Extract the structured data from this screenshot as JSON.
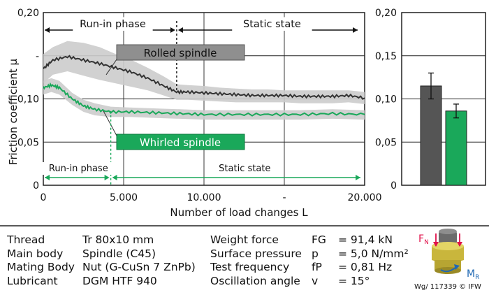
{
  "chart_data": [
    {
      "type": "line",
      "ylabel": "Friction coefficient μ",
      "xlabel": "Number of load changes L",
      "xlim": [
        0,
        20000
      ],
      "ylim": [
        0,
        0.2
      ],
      "x_tick_labels": [
        "0",
        "5.000",
        "10.000",
        "-",
        "20.000"
      ],
      "y_tick_labels": [
        "0",
        "0,05",
        "0,10",
        "-",
        "0,20"
      ],
      "grid": true,
      "annotations": {
        "rolled_label": "Rolled spindle",
        "whirled_label": "Whirled spindle",
        "runin_top": "Run-in phase",
        "static_top": "Static state",
        "runin_bottom": "Run-in phase",
        "static_bottom": "Static state",
        "rolled_transition_x": 8300,
        "whirled_transition_x": 4200
      },
      "series": [
        {
          "name": "Rolled spindle",
          "color": "#333333",
          "band_color": "#cccccc",
          "x": [
            0,
            600,
            1500,
            2500,
            3500,
            4500,
            5500,
            6500,
            7500,
            8300,
            9000,
            10000,
            11000,
            12000,
            13000,
            14000,
            15000,
            16000,
            17000,
            18000,
            19000,
            20000
          ],
          "y": [
            0.135,
            0.145,
            0.149,
            0.145,
            0.141,
            0.136,
            0.131,
            0.124,
            0.115,
            0.108,
            0.108,
            0.107,
            0.106,
            0.105,
            0.104,
            0.104,
            0.104,
            0.103,
            0.103,
            0.103,
            0.104,
            0.101
          ],
          "band_upper": [
            0.152,
            0.16,
            0.167,
            0.165,
            0.16,
            0.152,
            0.145,
            0.136,
            0.126,
            0.117,
            0.116,
            0.115,
            0.113,
            0.112,
            0.111,
            0.111,
            0.11,
            0.11,
            0.11,
            0.11,
            0.11,
            0.108
          ],
          "band_lower": [
            0.118,
            0.128,
            0.132,
            0.127,
            0.122,
            0.118,
            0.114,
            0.11,
            0.104,
            0.099,
            0.099,
            0.098,
            0.097,
            0.096,
            0.096,
            0.096,
            0.096,
            0.095,
            0.095,
            0.095,
            0.096,
            0.094
          ]
        },
        {
          "name": "Whirled spindle",
          "color": "#1aa85a",
          "band_color": "#cccccc",
          "x": [
            0,
            500,
            1000,
            1800,
            2500,
            3200,
            4200,
            5500,
            7000,
            8500,
            10000,
            12000,
            14000,
            16000,
            18000,
            20000
          ],
          "y": [
            0.113,
            0.116,
            0.113,
            0.1,
            0.092,
            0.088,
            0.085,
            0.085,
            0.084,
            0.083,
            0.082,
            0.082,
            0.082,
            0.082,
            0.083,
            0.082
          ],
          "band_upper": [
            0.121,
            0.124,
            0.121,
            0.107,
            0.099,
            0.095,
            0.091,
            0.09,
            0.089,
            0.088,
            0.087,
            0.087,
            0.087,
            0.087,
            0.088,
            0.087
          ],
          "band_lower": [
            0.105,
            0.108,
            0.105,
            0.093,
            0.085,
            0.081,
            0.079,
            0.079,
            0.078,
            0.077,
            0.076,
            0.076,
            0.076,
            0.076,
            0.077,
            0.076
          ]
        }
      ]
    },
    {
      "type": "bar",
      "ylim": [
        0,
        0.2
      ],
      "y_tick_labels": [
        "0",
        "0,05",
        "0,10",
        "0,15",
        "0,20"
      ],
      "grid": true,
      "series": [
        {
          "name": "Rolled spindle",
          "value": 0.115,
          "error": 0.015,
          "color": "#555555"
        },
        {
          "name": "Whirled spindle",
          "value": 0.086,
          "error": 0.008,
          "color": "#1aa85a"
        }
      ]
    }
  ],
  "specs": {
    "col1": [
      {
        "label": "Thread",
        "value": "Tr 80x10 mm"
      },
      {
        "label": "Main body",
        "value": "Spindle (C45)"
      },
      {
        "label": "Mating Body",
        "value": "Nut (G-CuSn 7 ZnPb)"
      },
      {
        "label": "Lubricant",
        "value": "DGM HTF 940"
      }
    ],
    "col2": [
      {
        "label": "Weight force",
        "sym": "FG",
        "value": "= 91,4 kN"
      },
      {
        "label": "Surface pressure",
        "sym": "p",
        "value": "= 5,0 N/mm²"
      },
      {
        "label": "Test frequency",
        "sym": "fP",
        "value": "= 0,81 Hz"
      },
      {
        "label": "Oscillation angle",
        "sym": "v",
        "value": "= 15°"
      }
    ]
  },
  "illustration": {
    "fn_label": "F",
    "fn_sub": "N",
    "mr_label": "M",
    "mr_sub": "R"
  },
  "credit": "Wg/ 117339 © IFW"
}
